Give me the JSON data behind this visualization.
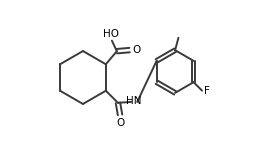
{
  "bg_color": "#ffffff",
  "line_color": "#3a3a3a",
  "line_width": 1.4,
  "text_color": "#000000",
  "font_size": 7.5,
  "figsize": [
    2.7,
    1.55
  ],
  "dpi": 100,
  "xlim": [
    0.0,
    1.0
  ],
  "ylim": [
    0.05,
    0.95
  ]
}
